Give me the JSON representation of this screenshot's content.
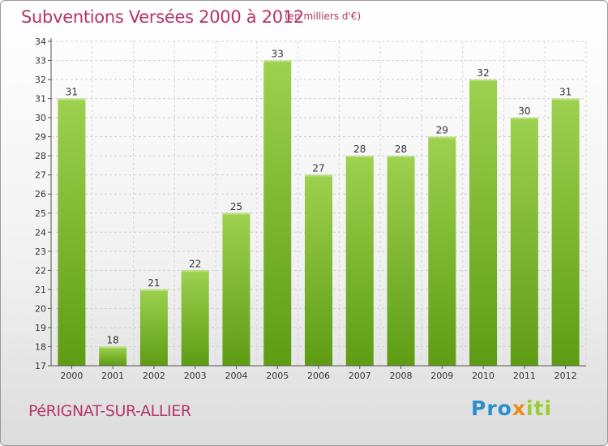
{
  "header": {
    "title": "Subventions Versées 2000 à 2012",
    "subtitle": "(en milliers d'€)"
  },
  "footer": {
    "commune": "PéRIGNAT-SUR-ALLIER",
    "logo": {
      "part1": "Pro",
      "part2": "x",
      "part3": "iti"
    }
  },
  "colors": {
    "bar_top": "#9dd14f",
    "bar_bottom": "#5e9c14",
    "title": "#b5346b"
  },
  "chart_data": {
    "type": "bar",
    "title": "Subventions Versées 2000 à 2012",
    "subtitle": "(en milliers d'€)",
    "categories": [
      "2000",
      "2001",
      "2002",
      "2003",
      "2004",
      "2005",
      "2006",
      "2007",
      "2008",
      "2009",
      "2010",
      "2011",
      "2012"
    ],
    "values": [
      31,
      18,
      21,
      22,
      25,
      33,
      27,
      28,
      28,
      29,
      32,
      30,
      31
    ],
    "ylim": [
      17,
      34
    ],
    "yticks": [
      17,
      18,
      19,
      20,
      21,
      22,
      23,
      24,
      25,
      26,
      27,
      28,
      29,
      30,
      31,
      32,
      33,
      34
    ],
    "grid": true,
    "legend": "none"
  }
}
